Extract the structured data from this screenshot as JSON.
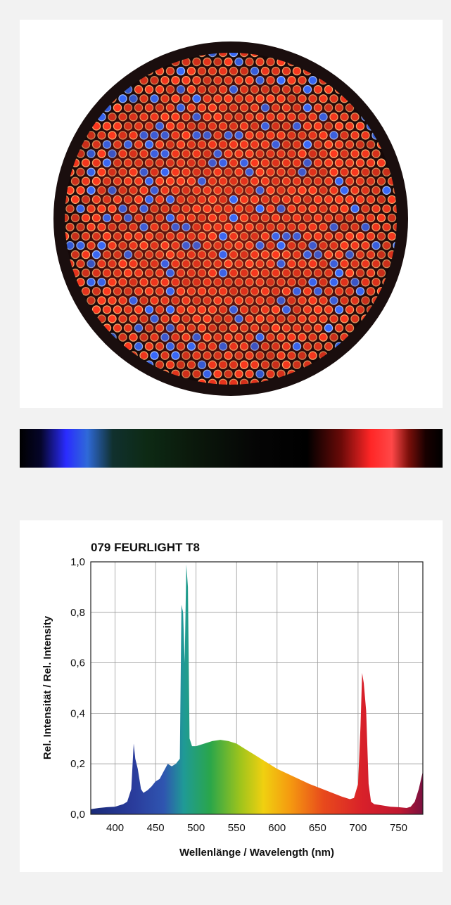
{
  "colors": {
    "page_background": "#f2f2f2",
    "panel_background": "#ffffff",
    "led_red": "#ff3a20",
    "led_blue": "#3a6cff",
    "lamp_housing": "#1a0e0e"
  },
  "strip_stops": [
    {
      "at": 0.0,
      "color": "#000000"
    },
    {
      "at": 0.05,
      "color": "#05052a"
    },
    {
      "at": 0.11,
      "color": "#2a2cff"
    },
    {
      "at": 0.16,
      "color": "#2f6ad8"
    },
    {
      "at": 0.22,
      "color": "#10302e"
    },
    {
      "at": 0.3,
      "color": "#0d2a14"
    },
    {
      "at": 0.4,
      "color": "#0b1a0c"
    },
    {
      "at": 0.56,
      "color": "#050505"
    },
    {
      "at": 0.68,
      "color": "#000000"
    },
    {
      "at": 0.76,
      "color": "#6a0a08"
    },
    {
      "at": 0.83,
      "color": "#ff2626"
    },
    {
      "at": 0.88,
      "color": "#ff4848"
    },
    {
      "at": 0.92,
      "color": "#7a0f0a"
    },
    {
      "at": 0.96,
      "color": "#180000"
    },
    {
      "at": 1.0,
      "color": "#000000"
    }
  ],
  "chart_data": {
    "type": "area",
    "title": "079 FEURLIGHT T8",
    "xlabel": "Wellenlänge / Wavelength (nm)",
    "ylabel": "Rel. Intensität / Rel. Intensity",
    "xlim": [
      370,
      780
    ],
    "ylim": [
      0,
      1
    ],
    "xticks": [
      400,
      450,
      500,
      550,
      600,
      650,
      700,
      750
    ],
    "yticks": [
      {
        "value": 0.0,
        "label": "0,0"
      },
      {
        "value": 0.2,
        "label": "0,2"
      },
      {
        "value": 0.4,
        "label": "0,4"
      },
      {
        "value": 0.6,
        "label": "0,6"
      },
      {
        "value": 0.8,
        "label": "0,8"
      },
      {
        "value": 1.0,
        "label": "1,0"
      }
    ],
    "grid": true,
    "series": [
      {
        "x": [
          370,
          380,
          390,
          400,
          405,
          410,
          415,
          420,
          423,
          425,
          428,
          432,
          435,
          440,
          445,
          450,
          455,
          460,
          465,
          470,
          475,
          480,
          482,
          484,
          486,
          488,
          490,
          492,
          495,
          500,
          510,
          520,
          530,
          540,
          550,
          560,
          570,
          580,
          590,
          600,
          620,
          640,
          660,
          680,
          690,
          695,
          700,
          703,
          705,
          707,
          710,
          713,
          716,
          720,
          730,
          740,
          750,
          760,
          765,
          770,
          775,
          780
        ],
        "y": [
          0.02,
          0.025,
          0.028,
          0.03,
          0.035,
          0.04,
          0.05,
          0.1,
          0.28,
          0.22,
          0.18,
          0.1,
          0.085,
          0.095,
          0.11,
          0.13,
          0.14,
          0.17,
          0.2,
          0.19,
          0.2,
          0.22,
          0.83,
          0.8,
          0.6,
          0.99,
          0.9,
          0.3,
          0.27,
          0.27,
          0.28,
          0.29,
          0.295,
          0.29,
          0.28,
          0.26,
          0.24,
          0.22,
          0.2,
          0.18,
          0.15,
          0.12,
          0.095,
          0.07,
          0.06,
          0.065,
          0.12,
          0.35,
          0.56,
          0.52,
          0.41,
          0.12,
          0.05,
          0.04,
          0.035,
          0.03,
          0.028,
          0.025,
          0.03,
          0.05,
          0.1,
          0.17
        ]
      }
    ]
  }
}
